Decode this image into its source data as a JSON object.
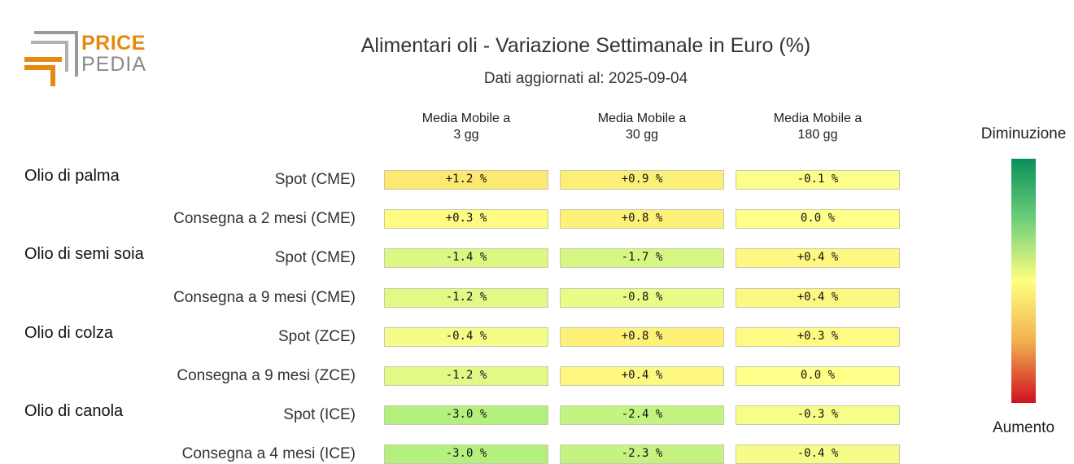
{
  "logo": {
    "line1": "PRICE",
    "line2": "PEDIA",
    "colors": {
      "orange": "#e8890f",
      "gray": "#9a9a9a"
    }
  },
  "header": {
    "title": "Alimentari oli - Variazione Settimanale in Euro (%)",
    "subtitle": "Dati aggiornati al: 2025-09-04"
  },
  "legend": {
    "top_label": "Diminuzione",
    "bottom_label": "Aumento",
    "colors": [
      "#0a8f5a",
      "#6fcf7a",
      "#ffff80",
      "#f0b050",
      "#d01020"
    ]
  },
  "chart_data": {
    "type": "heatmap",
    "title": "Alimentari oli - Variazione Settimanale in Euro (%)",
    "columns": [
      {
        "line1": "Media Mobile a",
        "line2": "3 gg"
      },
      {
        "line1": "Media Mobile a",
        "line2": "30 gg"
      },
      {
        "line1": "Media Mobile a",
        "line2": "180 gg"
      }
    ],
    "groups": [
      {
        "name": "Olio di palma",
        "rows": [
          {
            "label": "Spot (CME)",
            "values": [
              1.2,
              0.9,
              -0.1
            ]
          },
          {
            "label": "Consegna a 2 mesi (CME)",
            "values": [
              0.3,
              0.8,
              0.0
            ]
          }
        ]
      },
      {
        "name": "Olio di semi soia",
        "rows": [
          {
            "label": "Spot (CME)",
            "values": [
              -1.4,
              -1.7,
              0.4
            ]
          },
          {
            "label": "Consegna a 9 mesi (CME)",
            "values": [
              -1.2,
              -0.8,
              0.4
            ]
          }
        ]
      },
      {
        "name": "Olio di colza",
        "rows": [
          {
            "label": "Spot (ZCE)",
            "values": [
              -0.4,
              0.8,
              0.3
            ]
          },
          {
            "label": "Consegna a 9 mesi (ZCE)",
            "values": [
              -1.2,
              0.4,
              0.0
            ]
          }
        ]
      },
      {
        "name": "Olio di canola",
        "rows": [
          {
            "label": "Spot (ICE)",
            "values": [
              -3.0,
              -2.4,
              -0.3
            ]
          },
          {
            "label": "Consegna a 4 mesi (ICE)",
            "values": [
              -3.0,
              -2.3,
              -0.4
            ]
          }
        ]
      }
    ],
    "unit": "%"
  }
}
